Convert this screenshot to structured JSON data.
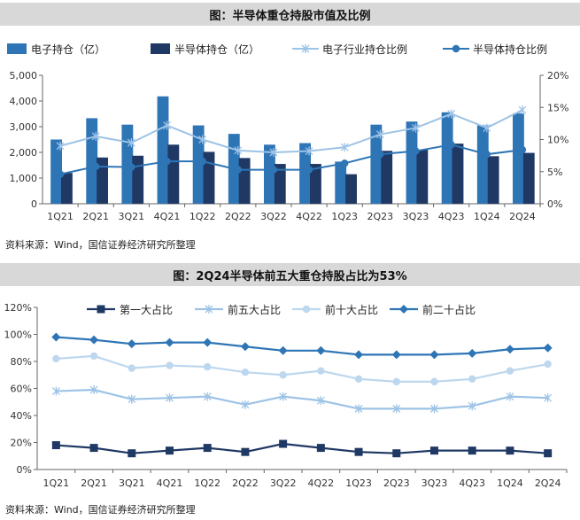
{
  "chart1_title": "图：半导体重仓持股市值及比例",
  "chart2_title": "图：2Q24半导体前五大重仓持股占比为53%",
  "source1": "资料来源：Wind，国信证券经济研究所整理",
  "source2": "资料来源：Wind，国信证券经济研究所整理",
  "colors": {
    "electronic_bar": "#2e75b6",
    "semi_bar": "#1f3864",
    "electronic_line": "#9dc3e6",
    "semi_line": "#2e75b6",
    "top1": "#1f3864",
    "top5": "#9dc3e6",
    "top10": "#bdd7ee",
    "top20": "#2e75b6",
    "title_bg": "#d8d8d8"
  },
  "chart_data": [
    {
      "type": "bar",
      "title": "图：半导体重仓持股市值及比例",
      "categories": [
        "1Q21",
        "2Q21",
        "3Q21",
        "4Q21",
        "1Q22",
        "2Q22",
        "3Q22",
        "4Q22",
        "1Q23",
        "2Q23",
        "3Q23",
        "4Q23",
        "1Q24",
        "2Q24"
      ],
      "y_left_ticks": [
        "0",
        "1,000",
        "2,000",
        "3,000",
        "4,000",
        "5,000"
      ],
      "y_right_ticks": [
        "0%",
        "5%",
        "10%",
        "15%",
        "20%"
      ],
      "ylim_left": [
        0,
        5000
      ],
      "ylim_right": [
        0,
        20
      ],
      "series": [
        {
          "name": "电子持仓（亿）",
          "kind": "bar",
          "axis": "left",
          "values": [
            2500,
            3330,
            3080,
            4180,
            3050,
            2720,
            2300,
            2360,
            1640,
            3080,
            3200,
            3560,
            3050,
            3520
          ]
        },
        {
          "name": "半导体持仓（亿）",
          "kind": "bar",
          "axis": "left",
          "values": [
            1200,
            1800,
            1870,
            2300,
            2020,
            1780,
            1550,
            1550,
            1150,
            2060,
            2100,
            2340,
            1850,
            1980
          ]
        },
        {
          "name": "电子行业持仓比例",
          "kind": "line",
          "axis": "right",
          "values": [
            9.0,
            10.5,
            9.5,
            12.2,
            10.0,
            8.3,
            8.0,
            8.2,
            8.8,
            10.8,
            11.8,
            14.0,
            11.8,
            14.6
          ]
        },
        {
          "name": "半导体持仓比例",
          "kind": "line",
          "axis": "right",
          "values": [
            4.6,
            5.8,
            5.7,
            6.6,
            6.6,
            5.3,
            5.3,
            5.3,
            6.3,
            7.7,
            8.2,
            9.2,
            7.7,
            8.4
          ]
        }
      ]
    },
    {
      "type": "line",
      "title": "图：2Q24半导体前五大重仓持股占比为53%",
      "categories": [
        "1Q21",
        "2Q21",
        "3Q21",
        "4Q21",
        "1Q22",
        "2Q22",
        "3Q22",
        "4Q22",
        "1Q23",
        "2Q23",
        "3Q23",
        "4Q23",
        "1Q24",
        "2Q24"
      ],
      "y_ticks": [
        "0%",
        "20%",
        "40%",
        "60%",
        "80%",
        "100%",
        "120%"
      ],
      "ylim": [
        0,
        120
      ],
      "series": [
        {
          "name": "第一大占比",
          "values": [
            18,
            16,
            12,
            14,
            16,
            13,
            19,
            16,
            13,
            12,
            14,
            14,
            14,
            12
          ]
        },
        {
          "name": "前五大占比",
          "values": [
            58,
            59,
            52,
            53,
            54,
            48,
            54,
            51,
            45,
            45,
            45,
            47,
            54,
            53
          ]
        },
        {
          "name": "前十大占比",
          "values": [
            82,
            84,
            75,
            77,
            76,
            72,
            70,
            73,
            67,
            65,
            65,
            67,
            73,
            78
          ]
        },
        {
          "name": "前二十占比",
          "values": [
            98,
            96,
            93,
            94,
            94,
            91,
            88,
            88,
            85,
            85,
            85,
            86,
            89,
            90
          ]
        }
      ]
    }
  ]
}
